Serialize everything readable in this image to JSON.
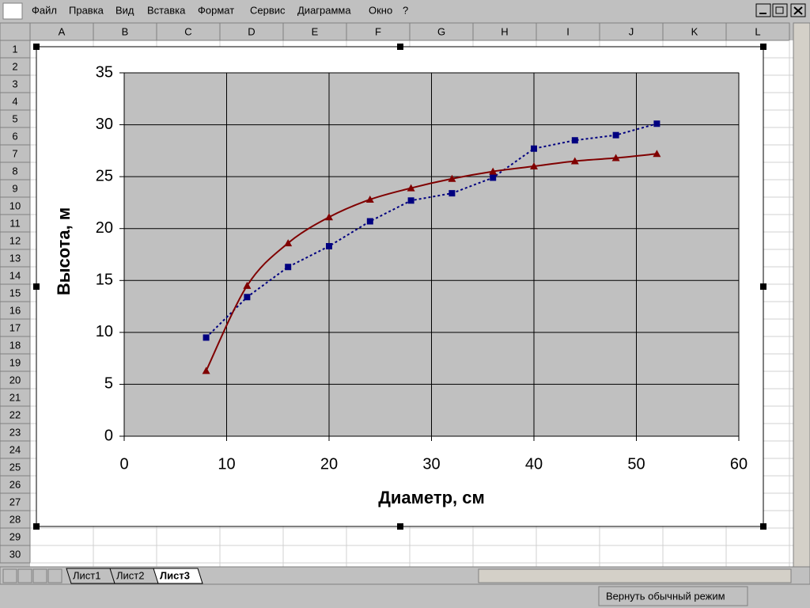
{
  "menu": [
    "Файл",
    "Правка",
    "Вид",
    "Вставка",
    "Формат",
    "Сервис",
    "Диаграмма",
    "Окно",
    "?"
  ],
  "columns": [
    "A",
    "B",
    "C",
    "D",
    "E",
    "F",
    "G",
    "H",
    "I",
    "J",
    "K",
    "L"
  ],
  "rows": [
    1,
    2,
    3,
    4,
    5,
    6,
    7,
    8,
    9,
    10,
    11,
    12,
    13,
    14,
    15,
    16,
    17,
    18,
    19,
    20,
    21,
    22,
    23,
    24,
    25,
    26,
    27,
    28,
    29,
    30
  ],
  "sheet_tabs": [
    "Лист1",
    "Лист2",
    "Лист3"
  ],
  "status_button": "Вернуть обычный режим",
  "chart_data": {
    "type": "line",
    "x_label": "Диаметр, см",
    "y_label": "Высота, м",
    "x": [
      8,
      12,
      16,
      20,
      24,
      28,
      32,
      36,
      40,
      44,
      48,
      52
    ],
    "series": [
      {
        "color": "#000080",
        "marker": "square",
        "line_style": "dotted",
        "smooth": false,
        "values": [
          9.5,
          13.4,
          16.3,
          18.3,
          20.7,
          22.7,
          23.4,
          24.9,
          27.7,
          28.5,
          29,
          30.1
        ]
      },
      {
        "color": "#800000",
        "marker": "triangle",
        "line_style": "solid",
        "smooth": true,
        "values": [
          6.3,
          14.5,
          18.6,
          21.1,
          22.8,
          23.9,
          24.8,
          25.5,
          26,
          26.5,
          26.8,
          27.2
        ]
      }
    ],
    "xlim": [
      0,
      60
    ],
    "xticks": [
      0,
      10,
      20,
      30,
      40,
      50,
      60
    ],
    "ylim": [
      0,
      35
    ],
    "yticks": [
      0,
      5,
      10,
      15,
      20,
      25,
      30,
      35
    ],
    "grid": true,
    "plot_background": "#c0c0c0"
  }
}
